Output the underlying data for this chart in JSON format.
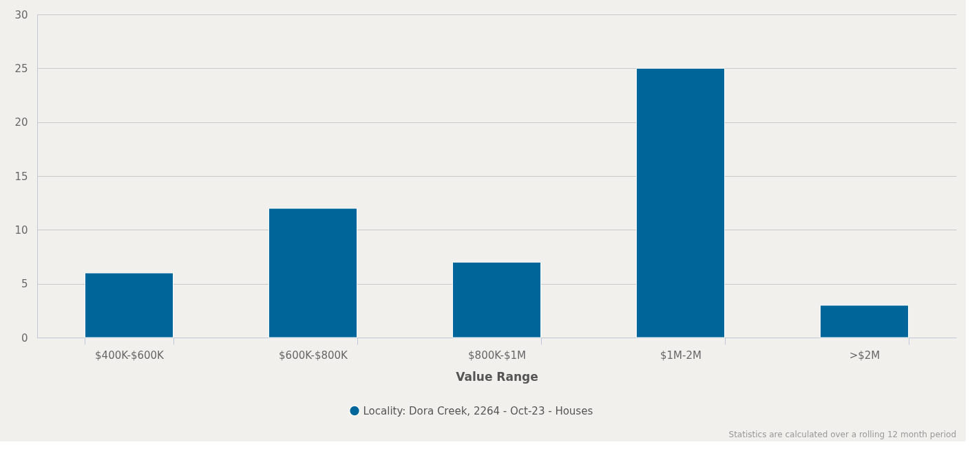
{
  "chart_data": {
    "type": "bar",
    "xlabel": "Value Range",
    "categories": [
      "$400K-$600K",
      "$600K-$800K",
      "$800K-$1M",
      "$1M-2M",
      ">$2M"
    ],
    "series": [
      {
        "name": "Locality: Dora Creek, 2264 - Oct-23 - Houses",
        "color": "#006699",
        "values": [
          6,
          12,
          7,
          25,
          3
        ]
      }
    ],
    "ylim": [
      0,
      30
    ],
    "yticks": [
      0,
      5,
      10,
      15,
      20,
      25,
      30
    ],
    "grid": "y",
    "legend": "bottom",
    "annotations": [
      "Statistics are calculated over a rolling 12 month period"
    ]
  }
}
